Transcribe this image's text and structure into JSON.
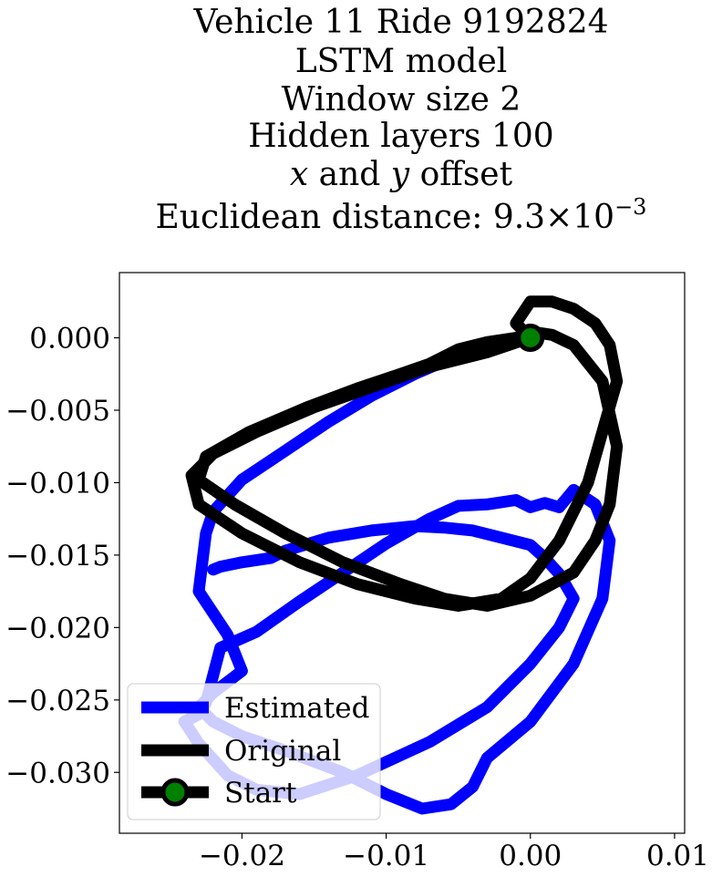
{
  "chart_data": {
    "type": "line",
    "title_lines": [
      "Vehicle 11 Ride 9192824",
      "LSTM model",
      "Window size 2",
      "Hidden layers 100",
      "x and y offset",
      "Euclidean distance: 9.3×10⁻³"
    ],
    "title_italic_line": {
      "pre": "",
      "x": "x",
      "mid": " and ",
      "y": "y",
      "post": " offset"
    },
    "title_math_line": {
      "pre": "Euclidean distance: 9.3",
      "times": "×",
      "base": "10",
      "exp": "−3"
    },
    "xlabel": "",
    "ylabel": "",
    "xlim": [
      -0.0285,
      0.0107
    ],
    "ylim": [
      -0.0342,
      0.0045
    ],
    "x_ticks": [
      -0.02,
      -0.01,
      0.0,
      0.01
    ],
    "x_tick_labels": [
      "−0.02",
      "−0.01",
      "0.00",
      "0.01"
    ],
    "y_ticks": [
      0.0,
      -0.005,
      -0.01,
      -0.015,
      -0.02,
      -0.025,
      -0.03
    ],
    "y_tick_labels": [
      "0.000",
      "−0.005",
      "−0.010",
      "−0.015",
      "−0.020",
      "−0.025",
      "−0.030"
    ],
    "grid": false,
    "legend_position": "lower-left",
    "series": [
      {
        "name": "Estimated",
        "color": "#0000ff",
        "x": [
          0.0,
          -0.002,
          -0.005,
          -0.008,
          -0.011,
          -0.014,
          -0.017,
          -0.02,
          -0.022,
          -0.0225,
          -0.023,
          -0.021,
          -0.02,
          -0.022,
          -0.023,
          -0.022,
          -0.02,
          -0.017,
          -0.013,
          -0.01,
          -0.0075,
          -0.0055,
          -0.004,
          -0.003,
          0.0,
          0.003,
          0.005,
          0.0055,
          0.0045,
          0.003,
          0.002,
          0.001,
          0.0,
          -0.001,
          -0.003,
          -0.005,
          -0.007,
          -0.01,
          -0.013,
          -0.016,
          -0.019,
          -0.0215,
          -0.0225,
          -0.023,
          -0.024,
          -0.023,
          -0.021,
          -0.019,
          -0.016,
          -0.012,
          -0.007,
          -0.003,
          0.0,
          0.002,
          0.003,
          0.002,
          0.001,
          0.0,
          -0.002,
          -0.004,
          -0.006,
          -0.008,
          -0.011,
          -0.014,
          -0.017,
          -0.018,
          -0.02,
          -0.0215,
          -0.022
        ],
        "y": [
          0.0,
          -0.0003,
          -0.0012,
          -0.0025,
          -0.004,
          -0.0058,
          -0.0078,
          -0.0098,
          -0.012,
          -0.0135,
          -0.0175,
          -0.0205,
          -0.023,
          -0.0245,
          -0.0255,
          -0.0265,
          -0.0275,
          -0.0285,
          -0.03,
          -0.0315,
          -0.0325,
          -0.0322,
          -0.031,
          -0.029,
          -0.0265,
          -0.0225,
          -0.018,
          -0.014,
          -0.0115,
          -0.0105,
          -0.0117,
          -0.0114,
          -0.0117,
          -0.0112,
          -0.0115,
          -0.0116,
          -0.0125,
          -0.0142,
          -0.0162,
          -0.0182,
          -0.0203,
          -0.0214,
          -0.0252,
          -0.026,
          -0.0265,
          -0.028,
          -0.0302,
          -0.0312,
          -0.0315,
          -0.0302,
          -0.0279,
          -0.0255,
          -0.0225,
          -0.02,
          -0.018,
          -0.0163,
          -0.0152,
          -0.0143,
          -0.0138,
          -0.0133,
          -0.0131,
          -0.013,
          -0.0133,
          -0.0138,
          -0.0147,
          -0.0152,
          -0.0155,
          -0.0158,
          -0.016
        ]
      },
      {
        "name": "Original",
        "color": "#000000",
        "x": [
          0.0,
          -0.003,
          -0.007,
          -0.011,
          -0.015,
          -0.019,
          -0.022,
          -0.0235,
          -0.023,
          -0.02,
          -0.016,
          -0.012,
          -0.008,
          -0.005,
          -0.002,
          0.0,
          0.002,
          0.004,
          0.005,
          0.006,
          0.0055,
          0.0045,
          0.003,
          0.0015,
          0.0,
          -0.001,
          -0.0005,
          0.0015,
          0.003,
          0.005,
          0.006,
          0.0055,
          0.0045,
          0.003,
          0.0,
          -0.003,
          -0.006,
          -0.009,
          -0.013,
          -0.017,
          -0.0205,
          -0.023,
          -0.0225,
          -0.0195,
          -0.0155,
          -0.012,
          -0.009,
          -0.007,
          -0.005,
          -0.003,
          -0.001,
          0.0
        ],
        "y": [
          0.0,
          -0.001,
          -0.002,
          -0.0034,
          -0.0048,
          -0.0065,
          -0.008,
          -0.0095,
          -0.0115,
          -0.0135,
          -0.0155,
          -0.017,
          -0.018,
          -0.0185,
          -0.018,
          -0.0166,
          -0.014,
          -0.01,
          -0.0065,
          -0.003,
          -0.0005,
          0.001,
          0.002,
          0.0025,
          0.0025,
          0.001,
          0.0005,
          0.0002,
          -0.0005,
          -0.003,
          -0.0075,
          -0.0115,
          -0.014,
          -0.0162,
          -0.0178,
          -0.0185,
          -0.018,
          -0.017,
          -0.0155,
          -0.0135,
          -0.0115,
          -0.0098,
          -0.0082,
          -0.0065,
          -0.0048,
          -0.0035,
          -0.0025,
          -0.0018,
          -0.0008,
          -0.0003,
          0.0,
          0.0
        ]
      }
    ],
    "start_point": {
      "name": "Start",
      "x": 0.0,
      "y": 0.0,
      "marker_face": "#008000",
      "marker_edge": "#000000"
    }
  }
}
